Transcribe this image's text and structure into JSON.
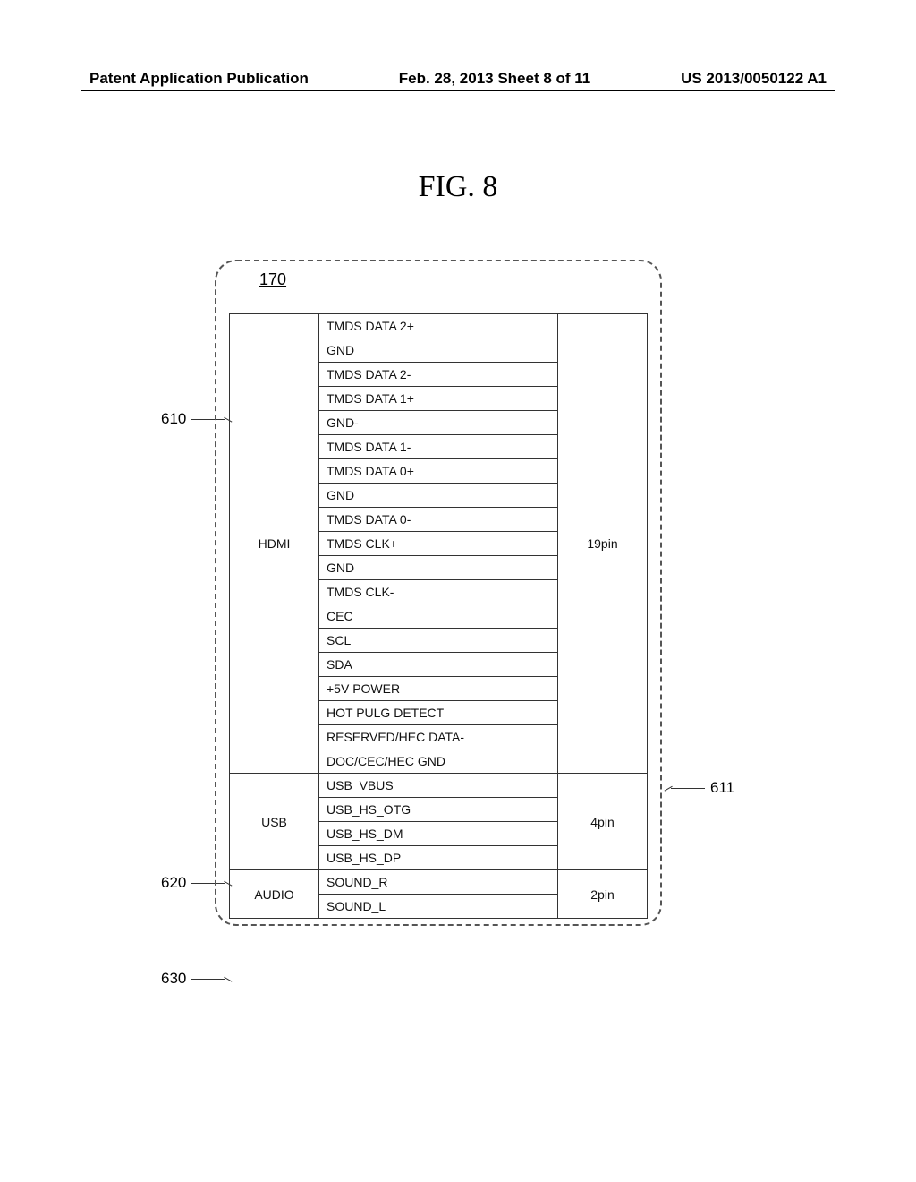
{
  "header": {
    "left": "Patent Application Publication",
    "center": "Feb. 28, 2013  Sheet 8 of 11",
    "right": "US 2013/0050122 A1"
  },
  "figure": {
    "title": "FIG. 8",
    "box_label": "170"
  },
  "callouts": {
    "left_610": "610",
    "left_620": "620",
    "left_630": "630",
    "right_611": "611"
  },
  "sections": [
    {
      "type_label": "HDMI",
      "count_label": "19pin",
      "signals": [
        "TMDS DATA 2+",
        "GND",
        "TMDS DATA 2-",
        "TMDS DATA 1+",
        "GND-",
        "TMDS DATA 1-",
        "TMDS DATA 0+",
        "GND",
        "TMDS DATA 0-",
        "TMDS CLK+",
        "GND",
        "TMDS CLK-",
        "CEC",
        "SCL",
        "SDA",
        "+5V POWER",
        "HOT PULG DETECT",
        "RESERVED/HEC DATA-",
        "DOC/CEC/HEC GND"
      ]
    },
    {
      "type_label": "USB",
      "count_label": "4pin",
      "signals": [
        "USB_VBUS",
        "USB_HS_OTG",
        "USB_HS_DM",
        "USB_HS_DP"
      ]
    },
    {
      "type_label": "AUDIO",
      "count_label": "2pin",
      "signals": [
        "SOUND_R",
        "SOUND_L"
      ]
    }
  ]
}
